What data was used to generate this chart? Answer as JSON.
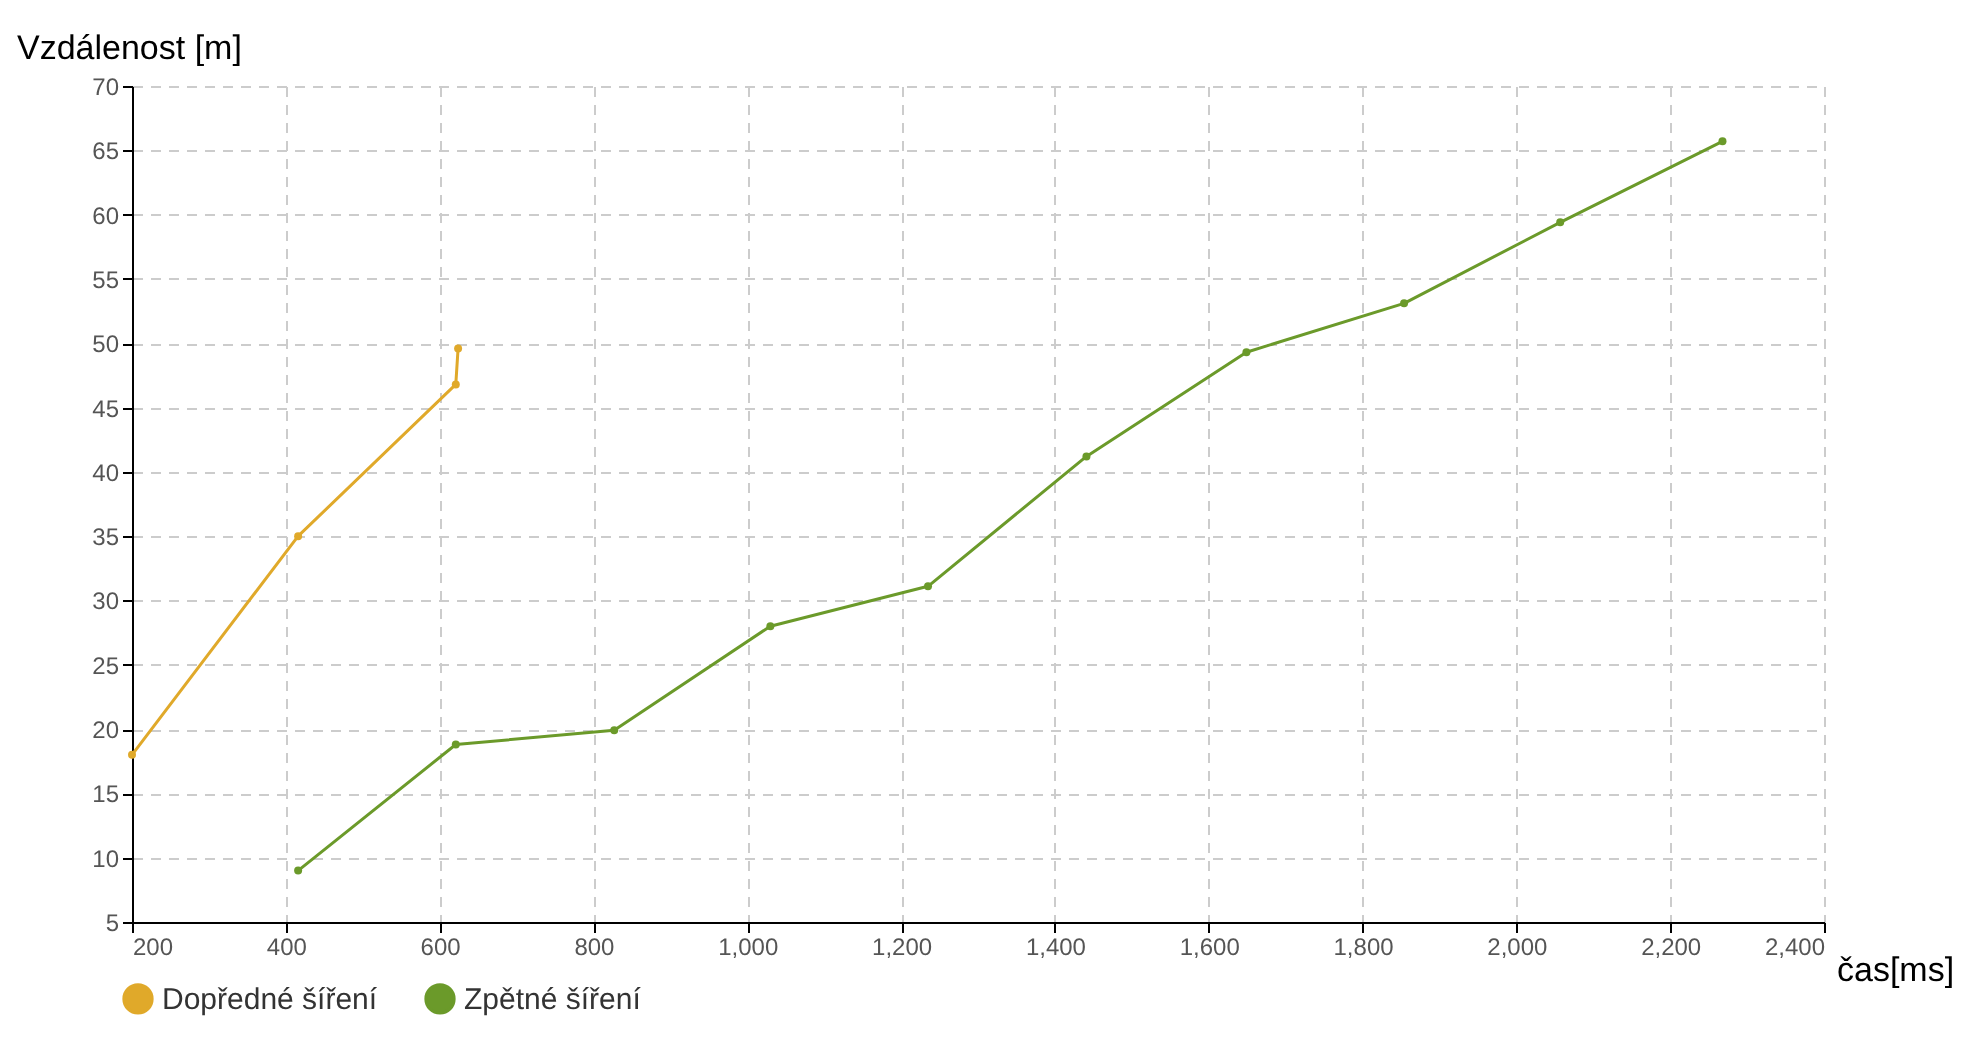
{
  "chart_data": {
    "type": "line",
    "xlabel": "čas[ms]",
    "ylabel": "Vzdálenost [m]",
    "xlim": [
      200,
      2400
    ],
    "ylim": [
      5,
      70
    ],
    "xticks": [
      200,
      400,
      600,
      800,
      {
        "value": 1000,
        "label": "1,000"
      },
      {
        "value": 1200,
        "label": "1,200"
      },
      {
        "value": 1400,
        "label": "1,400"
      },
      {
        "value": 1600,
        "label": "1,600"
      },
      {
        "value": 1800,
        "label": "1,800"
      },
      {
        "value": 2000,
        "label": "2,000"
      },
      {
        "value": 2200,
        "label": "2,200"
      },
      {
        "value": 2400,
        "label": "2,400"
      }
    ],
    "yticks": [
      5,
      10,
      15,
      20,
      25,
      30,
      35,
      40,
      45,
      50,
      55,
      60,
      65,
      70
    ],
    "grid": true,
    "legend": "bottom left",
    "marker": "circle",
    "line_style": "solid",
    "series": [
      {
        "name": "Dopředné šíření",
        "color": "#e0a92a",
        "x": [
          200,
          416,
          621,
          624
        ],
        "values": [
          18,
          35,
          46.8,
          49.6
        ]
      },
      {
        "name": "Zpětné šíření",
        "color": "#6b9a2a",
        "x": [
          416,
          621,
          827,
          1030,
          1235,
          1441,
          1649,
          1854,
          2057,
          2268
        ],
        "values": [
          9,
          18.8,
          19.9,
          28,
          31.1,
          41.2,
          49.3,
          53.1,
          59.4,
          65.7
        ]
      }
    ]
  }
}
